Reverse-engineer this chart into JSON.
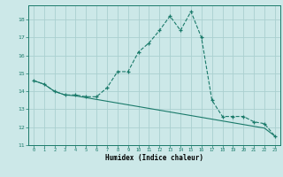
{
  "title": "",
  "xlabel": "Humidex (Indice chaleur)",
  "bg_color": "#cce8e8",
  "grid_color": "#aad0d0",
  "line_color": "#1a7a6a",
  "xlim": [
    -0.5,
    23.5
  ],
  "ylim": [
    11,
    18.8
  ],
  "yticks": [
    11,
    12,
    13,
    14,
    15,
    16,
    17,
    18
  ],
  "xticks": [
    0,
    1,
    2,
    3,
    4,
    5,
    6,
    7,
    8,
    9,
    10,
    11,
    12,
    13,
    14,
    15,
    16,
    17,
    18,
    19,
    20,
    21,
    22,
    23
  ],
  "curve1_x": [
    0,
    1,
    2,
    3,
    4,
    5,
    6,
    7,
    8,
    9,
    10,
    11,
    12,
    13,
    14,
    15,
    16,
    17,
    18,
    19,
    20,
    21,
    22,
    23
  ],
  "curve1_y": [
    14.6,
    14.4,
    14.0,
    13.8,
    13.8,
    13.7,
    13.7,
    14.2,
    15.1,
    15.1,
    16.2,
    16.7,
    17.4,
    18.2,
    17.4,
    18.45,
    17.0,
    13.5,
    12.6,
    12.6,
    12.6,
    12.3,
    12.2,
    11.5
  ],
  "curve2_x": [
    0,
    1,
    2,
    3,
    4,
    5,
    6,
    7,
    8,
    9,
    10,
    11,
    12,
    13,
    14,
    15,
    16,
    17,
    18,
    19,
    20,
    21,
    22,
    23
  ],
  "curve2_y": [
    14.6,
    14.4,
    14.0,
    13.8,
    13.75,
    13.65,
    13.55,
    13.45,
    13.35,
    13.25,
    13.15,
    13.05,
    12.95,
    12.85,
    12.75,
    12.65,
    12.55,
    12.45,
    12.35,
    12.25,
    12.15,
    12.05,
    11.95,
    11.5
  ]
}
